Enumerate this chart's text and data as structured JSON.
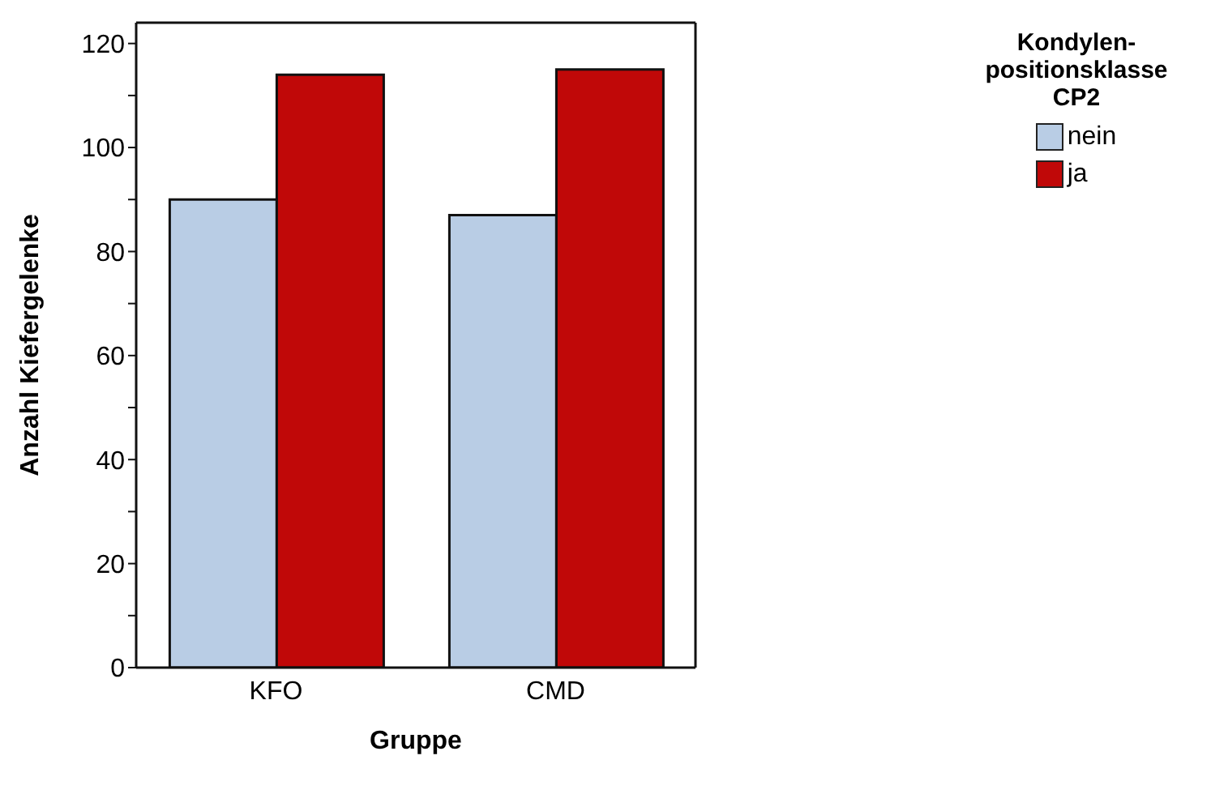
{
  "chart_data": {
    "type": "bar",
    "xlabel": "Gruppe",
    "ylabel": "Anzahl Kiefergelenke",
    "legend_title": "Kondylen-positionsklasse CP2",
    "categories": [
      "KFO",
      "CMD"
    ],
    "series": [
      {
        "name": "nein",
        "color": "#b9cde5",
        "values": [
          90,
          87
        ]
      },
      {
        "name": "ja",
        "color": "#c00808",
        "values": [
          114,
          115
        ]
      }
    ],
    "ylim": [
      0,
      124
    ],
    "yticks": [
      0,
      {
        "value": 10,
        "label": null
      },
      20,
      {
        "value": 30,
        "label": null
      },
      40,
      {
        "value": 50,
        "label": null
      },
      60,
      {
        "value": 70,
        "label": null
      },
      80,
      {
        "value": 90,
        "label": null
      },
      100,
      {
        "value": 110,
        "label": null
      },
      120
    ],
    "grid": false,
    "legend": "top right"
  }
}
